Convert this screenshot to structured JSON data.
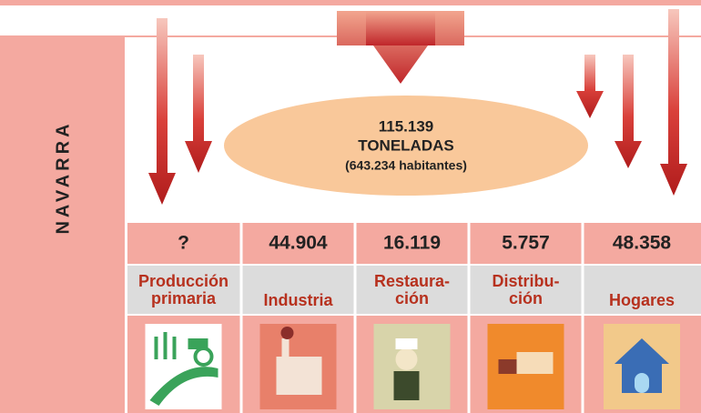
{
  "region": "NAVARRA",
  "total": {
    "amount": "115.139",
    "unit": "TONELADAS",
    "population": "(643.234 habitantes)"
  },
  "columns": [
    {
      "value": "?",
      "label": [
        "Producción",
        "primaria"
      ]
    },
    {
      "value": "44.904",
      "label": [
        "Industria"
      ]
    },
    {
      "value": "16.119",
      "label": [
        "Restaura-",
        "ción"
      ]
    },
    {
      "value": "5.757",
      "label": [
        "Distribu-",
        "ción"
      ]
    },
    {
      "value": "48.358",
      "label": [
        "Hogares"
      ]
    }
  ]
}
